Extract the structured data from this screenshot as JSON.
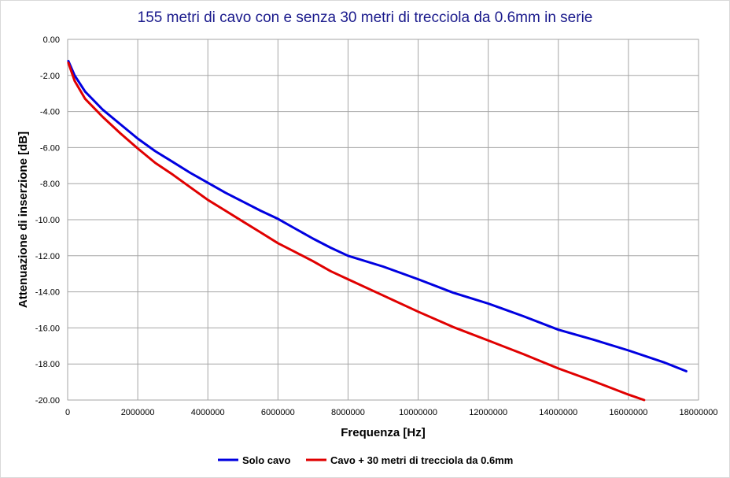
{
  "chart_data": {
    "type": "line",
    "title": "155 metri di cavo con e senza 30 metri di trecciola da 0.6mm in serie",
    "xlabel": "Frequenza [Hz]",
    "ylabel": "Attenuazione di inserzione [dB]",
    "xlim": [
      0,
      18000000
    ],
    "ylim": [
      -20,
      0
    ],
    "x_ticks": [
      "0",
      "2000000",
      "4000000",
      "6000000",
      "8000000",
      "10000000",
      "12000000",
      "14000000",
      "16000000",
      "18000000"
    ],
    "y_ticks": [
      "0.00",
      "-2.00",
      "-4.00",
      "-6.00",
      "-8.00",
      "-10.00",
      "-12.00",
      "-14.00",
      "-16.00",
      "-18.00",
      "-20.00"
    ],
    "grid": true,
    "legend_position": "bottom",
    "series": [
      {
        "name": "Solo cavo",
        "color": "#0000e0",
        "x": [
          20000,
          200000,
          500000,
          1000000,
          1500000,
          2000000,
          2500000,
          3000000,
          3500000,
          4000000,
          4500000,
          5000000,
          5500000,
          6000000,
          6500000,
          7000000,
          7500000,
          8000000,
          9000000,
          10000000,
          11000000,
          12000000,
          13000000,
          14000000,
          15000000,
          16000000,
          17000000,
          17650000
        ],
        "y": [
          -1.2,
          -2.0,
          -2.9,
          -3.9,
          -4.7,
          -5.5,
          -6.2,
          -6.8,
          -7.4,
          -7.95,
          -8.5,
          -9.0,
          -9.5,
          -9.95,
          -10.5,
          -11.05,
          -11.55,
          -12.0,
          -12.6,
          -13.3,
          -14.05,
          -14.65,
          -15.35,
          -16.1,
          -16.65,
          -17.25,
          -17.9,
          -18.4
        ]
      },
      {
        "name": "Cavo + 30 metri di trecciola da 0.6mm",
        "color": "#e00000",
        "x": [
          20000,
          200000,
          500000,
          1000000,
          1500000,
          2000000,
          2500000,
          3000000,
          3500000,
          4000000,
          4500000,
          5000000,
          5500000,
          6000000,
          6500000,
          7000000,
          7500000,
          8000000,
          9000000,
          10000000,
          11000000,
          12000000,
          13000000,
          14000000,
          15000000,
          16000000,
          16450000
        ],
        "y": [
          -1.3,
          -2.3,
          -3.3,
          -4.3,
          -5.2,
          -6.05,
          -6.85,
          -7.5,
          -8.2,
          -8.9,
          -9.5,
          -10.1,
          -10.7,
          -11.3,
          -11.8,
          -12.3,
          -12.85,
          -13.3,
          -14.2,
          -15.1,
          -15.95,
          -16.7,
          -17.45,
          -18.25,
          -18.95,
          -19.7,
          -20.0
        ]
      }
    ]
  }
}
